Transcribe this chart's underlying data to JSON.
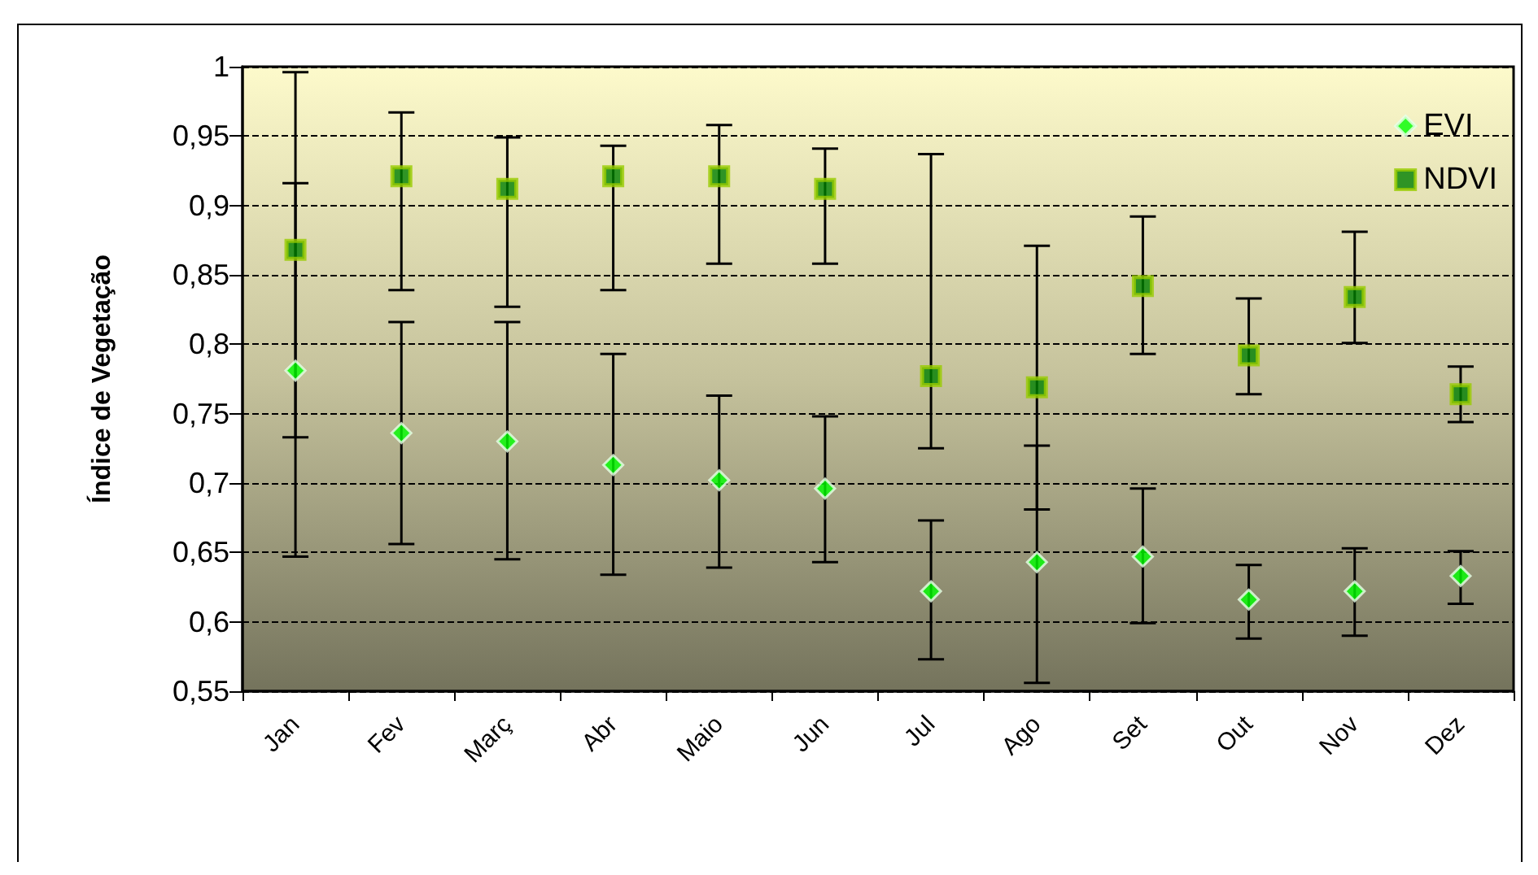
{
  "chart_data": {
    "type": "scatter",
    "ylabel": "Índice de Vegetação",
    "categories": [
      "Jan",
      "Fev",
      "Març",
      "Abr",
      "Maio",
      "Jun",
      "Jul",
      "Ago",
      "Set",
      "Out",
      "Nov",
      "Dez"
    ],
    "series": [
      {
        "name": "EVI",
        "color": "#00ff00",
        "marker": "diamond",
        "values": [
          0.781,
          0.736,
          0.73,
          0.713,
          0.702,
          0.696,
          0.622,
          0.643,
          0.647,
          0.616,
          0.622,
          0.633
        ],
        "errors": [
          [
            0.733,
            0.916
          ],
          [
            0.656,
            0.816
          ],
          [
            0.645,
            0.816
          ],
          [
            0.634,
            0.793
          ],
          [
            0.639,
            0.763
          ],
          [
            0.643,
            0.748
          ],
          [
            0.573,
            0.673
          ],
          [
            0.556,
            0.727
          ],
          [
            0.599,
            0.696
          ],
          [
            0.588,
            0.641
          ],
          [
            0.59,
            0.653
          ],
          [
            0.613,
            0.651
          ]
        ]
      },
      {
        "name": "NDVI",
        "color": "#008000",
        "marker": "square",
        "values": [
          0.868,
          0.921,
          0.912,
          0.921,
          0.921,
          0.912,
          0.777,
          0.769,
          0.842,
          0.792,
          0.834,
          0.764
        ],
        "errors": [
          [
            0.647,
            0.996
          ],
          [
            0.839,
            0.967
          ],
          [
            0.827,
            0.949
          ],
          [
            0.839,
            0.943
          ],
          [
            0.858,
            0.958
          ],
          [
            0.858,
            0.941
          ],
          [
            0.725,
            0.937
          ],
          [
            0.681,
            0.871
          ],
          [
            0.793,
            0.892
          ],
          [
            0.764,
            0.833
          ],
          [
            0.801,
            0.881
          ],
          [
            0.744,
            0.784
          ]
        ]
      }
    ],
    "ylim": [
      0.55,
      1
    ],
    "yticks": [
      {
        "value": 0.55,
        "label": "0,55"
      },
      {
        "value": 0.6,
        "label": "0,6"
      },
      {
        "value": 0.65,
        "label": "0,65"
      },
      {
        "value": 0.7,
        "label": "0,7"
      },
      {
        "value": 0.75,
        "label": "0,75"
      },
      {
        "value": 0.8,
        "label": "0,8"
      },
      {
        "value": 0.85,
        "label": "0,85"
      },
      {
        "value": 0.9,
        "label": "0,9"
      },
      {
        "value": 0.95,
        "label": "0,95"
      },
      1
    ],
    "grid": "y",
    "legend": "top right"
  }
}
